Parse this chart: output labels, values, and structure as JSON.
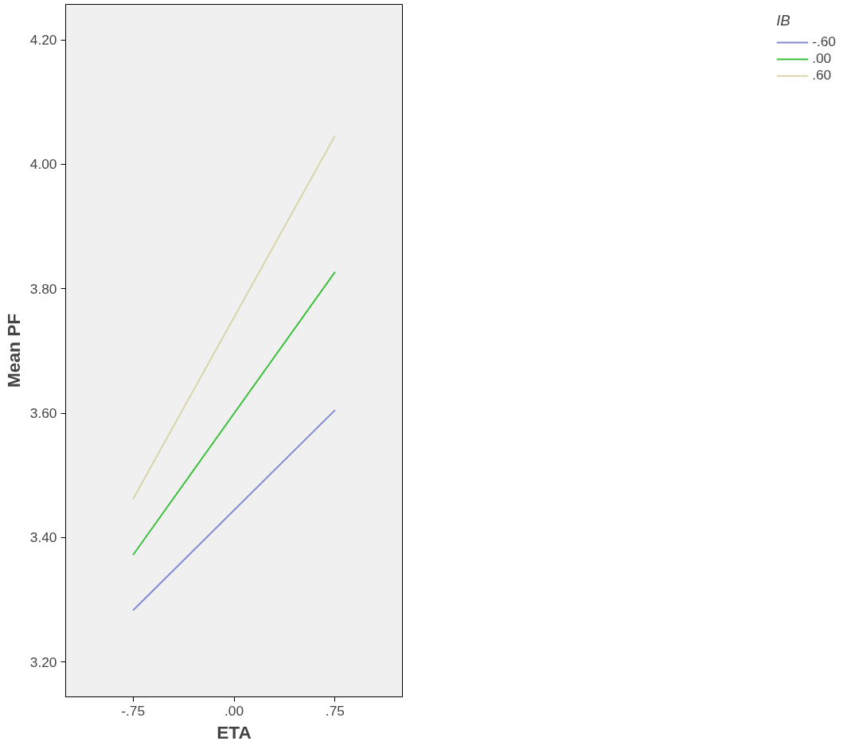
{
  "chart_data": {
    "type": "line",
    "xlabel": "ETA",
    "ylabel": "Mean PF",
    "legend_title": "IB",
    "legend": "top right",
    "grid": false,
    "marker": "none",
    "line_style": "solid",
    "x": [
      -0.75,
      0.75
    ],
    "series": [
      {
        "name": "-.60",
        "color": "#7f89d0",
        "values": [
          3.283,
          3.605
        ]
      },
      {
        "name": ".00",
        "color": "#3fbf3f",
        "values": [
          3.372,
          3.827
        ]
      },
      {
        "name": ".60",
        "color": "#d9d5aa",
        "values": [
          3.462,
          4.046
        ]
      }
    ],
    "xlim": [
      -1.25,
      1.25
    ],
    "ylim": [
      3.144,
      4.257
    ],
    "xticks": [
      {
        "value": -0.75,
        "label": "-.75"
      },
      {
        "value": 0,
        "label": ".00"
      },
      {
        "value": 0.75,
        "label": ".75"
      }
    ],
    "yticks": [
      {
        "value": 3.2,
        "label": "3.20"
      },
      {
        "value": 3.4,
        "label": "3.40"
      },
      {
        "value": 3.6,
        "label": "3.60"
      },
      {
        "value": 3.8,
        "label": "3.80"
      },
      {
        "value": 4.0,
        "label": "4.00"
      },
      {
        "value": 4.2,
        "label": "4.20"
      }
    ]
  }
}
